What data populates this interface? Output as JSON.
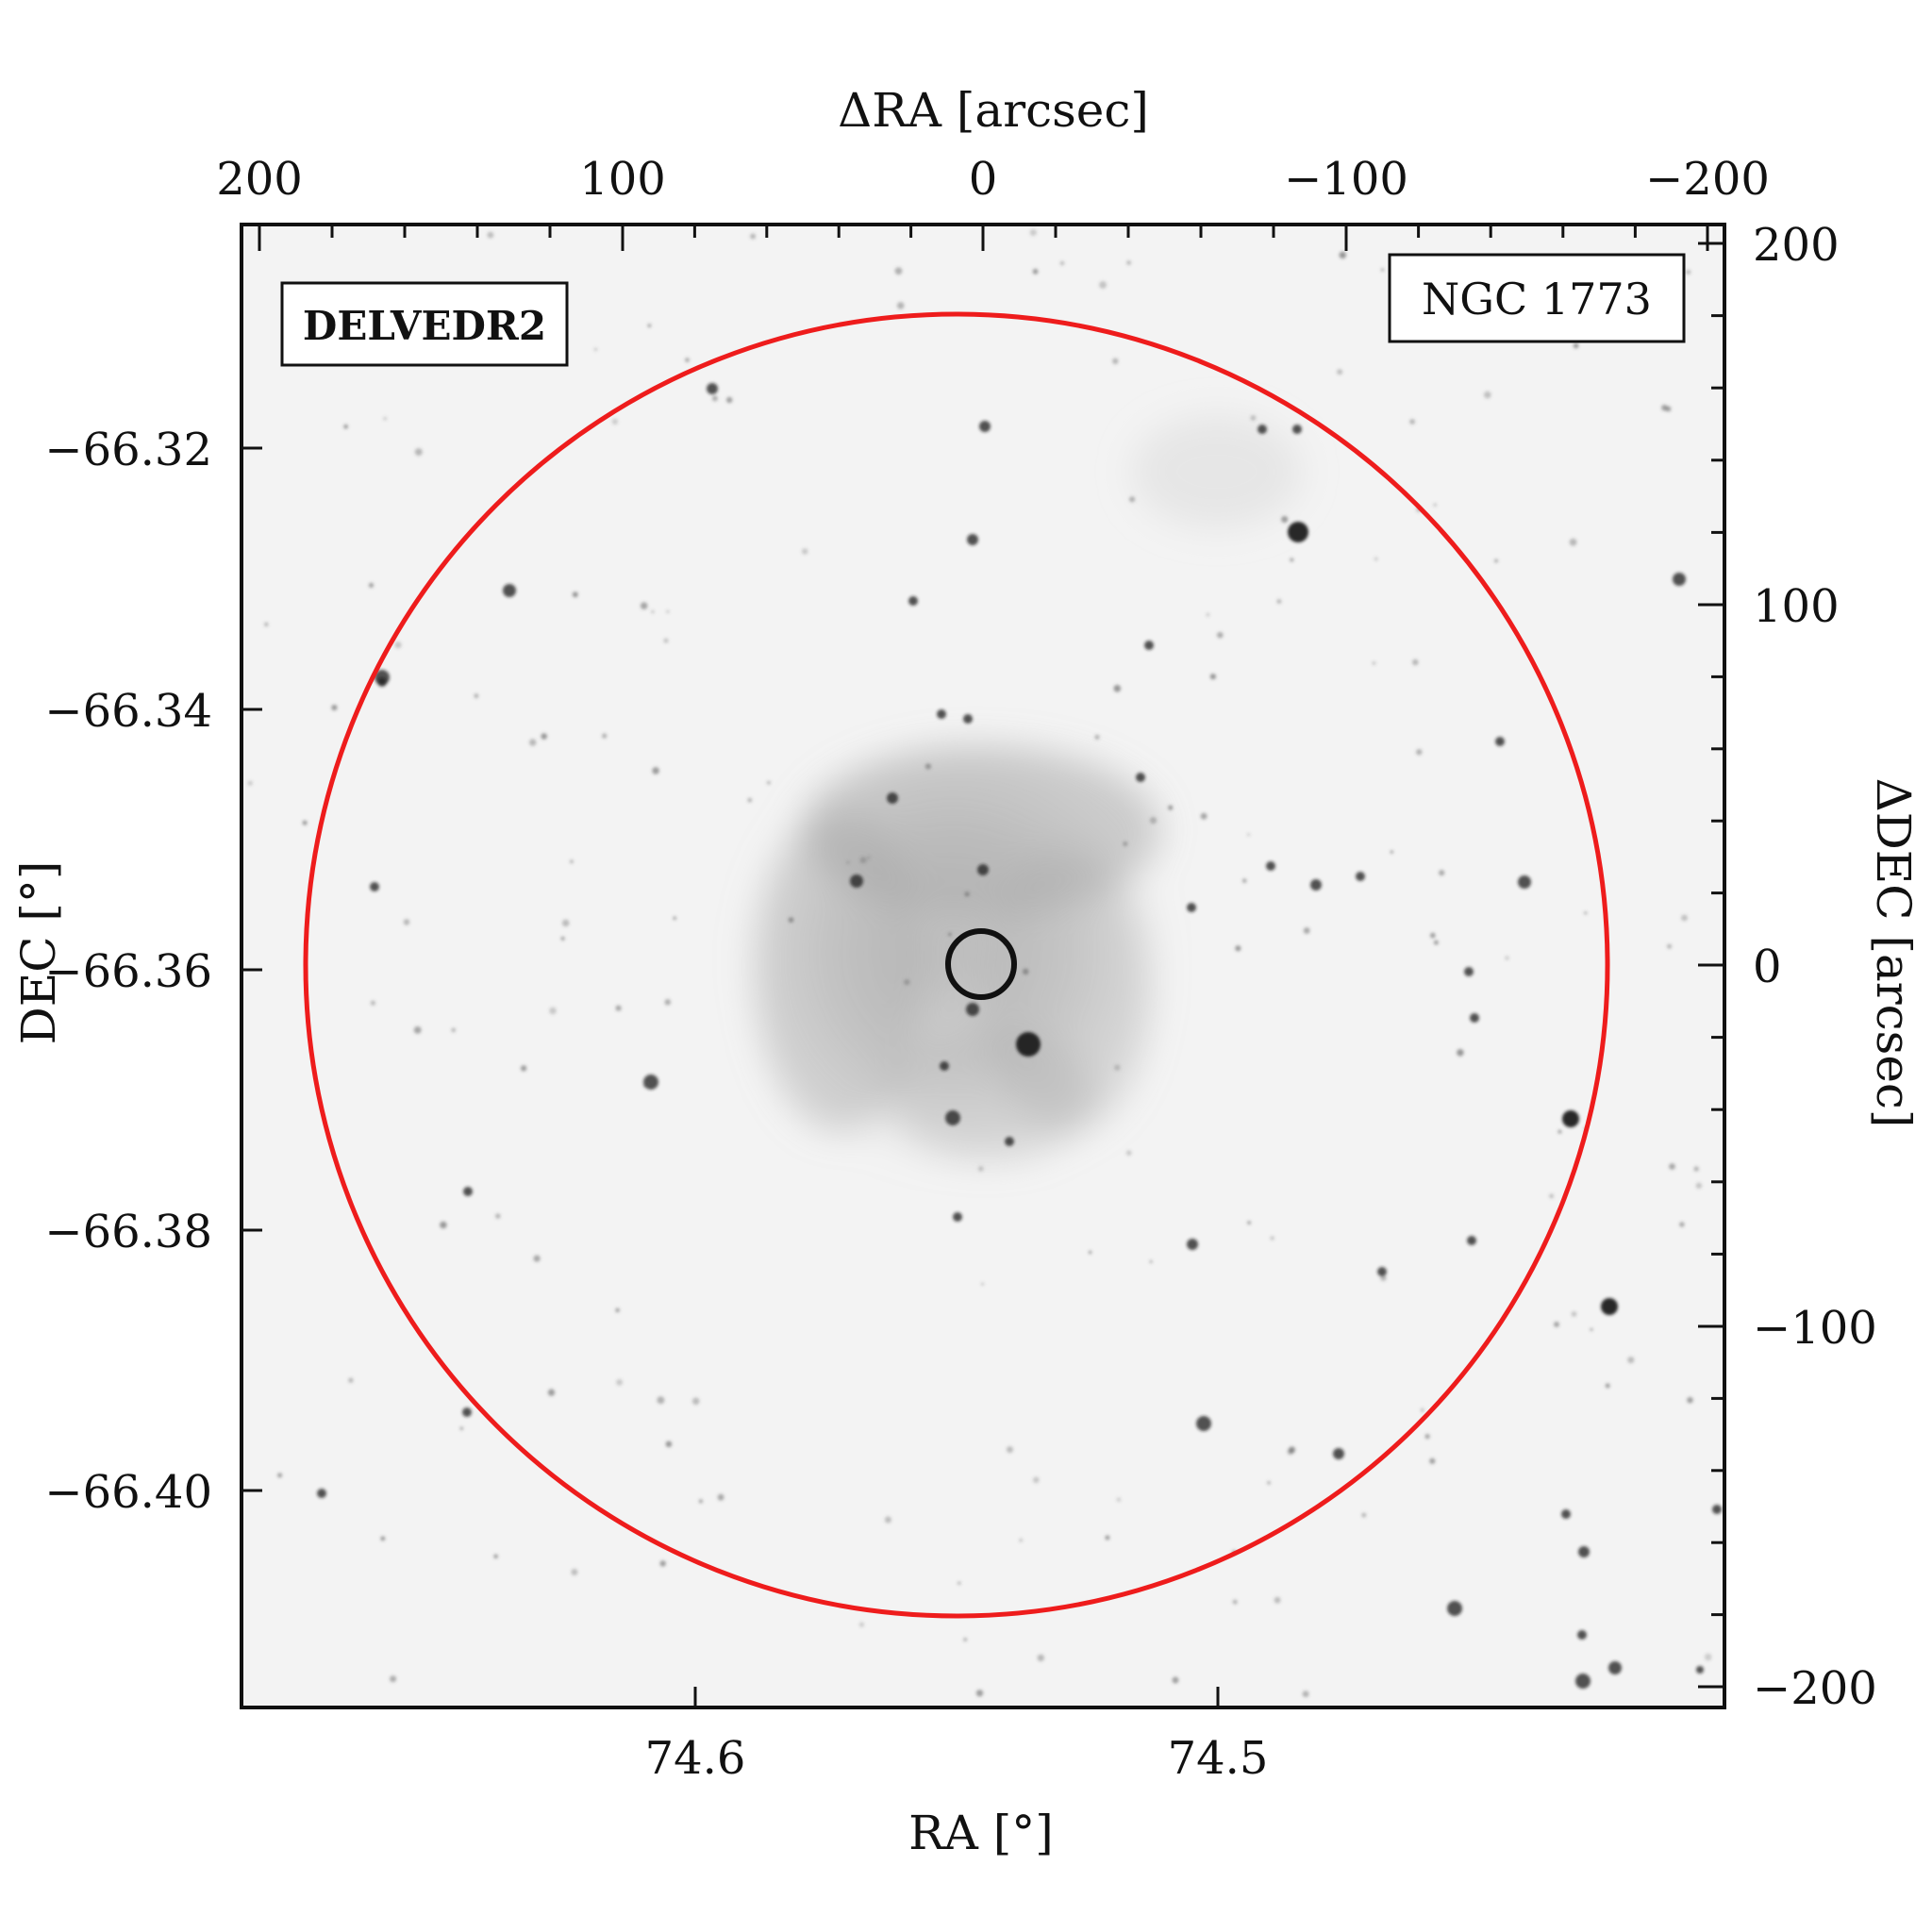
{
  "figure": {
    "survey_label": "DELVEDR2",
    "object_label": "NGC 1773",
    "survey_color": "#ee1c1c"
  },
  "axes": {
    "bottom": {
      "label": "RA [°]",
      "ticks": [
        "74.6",
        "74.5"
      ]
    },
    "left": {
      "label": "DEC [°]",
      "ticks": [
        "−66.32",
        "−66.34",
        "−66.36",
        "−66.38",
        "−66.40"
      ]
    },
    "top": {
      "label": "ΔRA [arcsec]",
      "ticks": [
        "200",
        "100",
        "0",
        "−100",
        "−200"
      ]
    },
    "right": {
      "label": "ΔDEC [arcsec]",
      "ticks": [
        "200",
        "100",
        "0",
        "−100",
        "−200"
      ]
    }
  }
}
